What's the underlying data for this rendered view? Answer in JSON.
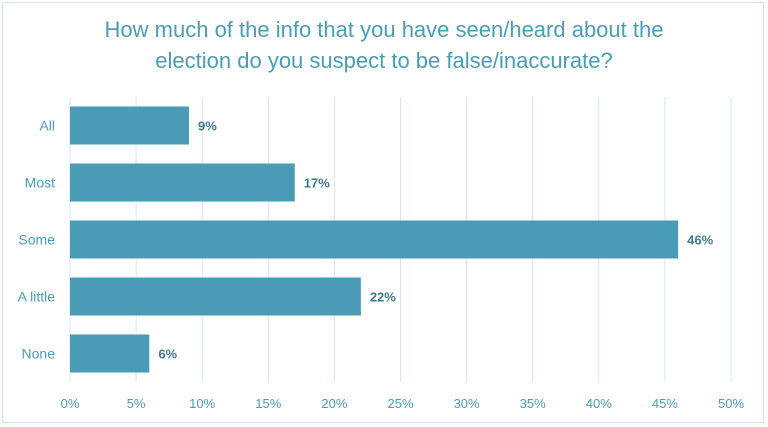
{
  "chart_data": {
    "type": "bar",
    "orientation": "horizontal",
    "title_lines": [
      "How much of the info that you have seen/heard about the",
      "election do you suspect to be false/inaccurate?"
    ],
    "categories": [
      "All",
      "Most",
      "Some",
      "A little",
      "None"
    ],
    "values": [
      9,
      17,
      46,
      22,
      6
    ],
    "data_labels": [
      "9%",
      "17%",
      "46%",
      "22%",
      "6%"
    ],
    "x_ticks": [
      "0%",
      "5%",
      "10%",
      "15%",
      "20%",
      "25%",
      "30%",
      "35%",
      "40%",
      "45%",
      "50%"
    ],
    "xlim": [
      0,
      50
    ],
    "grid": "vertical",
    "legend": "none",
    "colors": {
      "bar": "#4a9bb5",
      "text": "#4a9db5",
      "data_label": "#3e7a8c",
      "grid": "#d4e8ef",
      "border": "#cfe3ea"
    }
  }
}
